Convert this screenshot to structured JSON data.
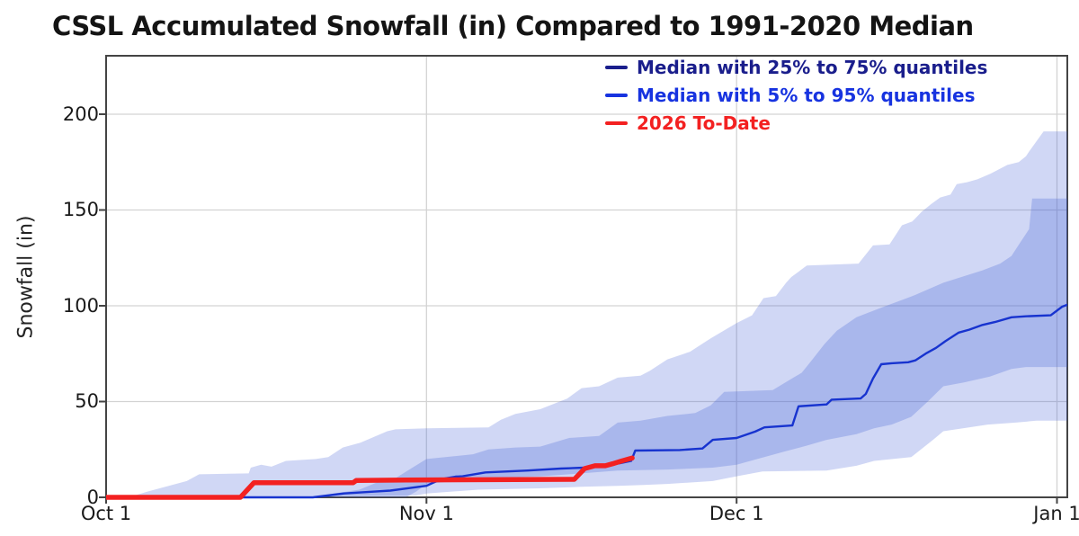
{
  "title": "CSSL Accumulated Snowfall (in) Compared to 1991-2020 Median",
  "y_axis_title": "Snowfall (in)",
  "legend": {
    "entries": [
      {
        "label": "Median with 25% to 75% quantiles",
        "color": "#1a1e8c"
      },
      {
        "label": "Median with 5% to 95% quantiles",
        "color": "#1733e0"
      },
      {
        "label": "2026 To-Date",
        "color": "#f32121"
      }
    ]
  },
  "colors": {
    "grid": "#d3d3d3",
    "axis_border": "#444444",
    "band_fill": "rgba(68,96,215,0.25)",
    "inner_band_fill": "rgba(68,96,215,0.27)",
    "median_line": "#1733cf",
    "to_date_line": "#f32121",
    "tick_text": "#1a1a1a",
    "title_text": "#141414"
  },
  "chart_data": {
    "type": "line",
    "subtype": "median-with-quantile-bands",
    "x_unit": "days since Oct 1",
    "xlim": [
      0,
      93
    ],
    "ylim": [
      0,
      230.5
    ],
    "grid": true,
    "legend_position": "top-right-inside",
    "xlabel": "",
    "ylabel": "Snowfall (in)",
    "xticks": {
      "days": [
        0,
        31,
        61,
        92
      ],
      "labels": [
        "Oct 1",
        "Nov 1",
        "Dec 1",
        "Jan 1"
      ]
    },
    "yticks": [
      0,
      50,
      100,
      150,
      200
    ],
    "series": [
      {
        "name": "5% to 95% quantile band",
        "type": "band",
        "upper": [
          [
            0,
            0
          ],
          [
            2.8,
            1
          ],
          [
            4,
            3
          ],
          [
            7.8,
            8.5
          ],
          [
            9,
            12
          ],
          [
            13.8,
            12.5
          ],
          [
            14,
            15.5
          ],
          [
            15,
            17
          ],
          [
            16,
            16
          ],
          [
            17.4,
            19
          ],
          [
            20.3,
            20
          ],
          [
            21.5,
            21
          ],
          [
            22.9,
            26
          ],
          [
            24.6,
            28.5
          ],
          [
            27.2,
            34.5
          ],
          [
            28,
            35.5
          ],
          [
            31,
            36
          ],
          [
            37,
            36.5
          ],
          [
            38.2,
            40.5
          ],
          [
            39.6,
            43.5
          ],
          [
            42,
            46
          ],
          [
            44.6,
            51.5
          ],
          [
            46,
            57
          ],
          [
            47.7,
            58
          ],
          [
            49.5,
            62.5
          ],
          [
            51.7,
            63.5
          ],
          [
            52.6,
            66
          ],
          [
            54.3,
            72
          ],
          [
            56.5,
            76
          ],
          [
            58.5,
            83
          ],
          [
            61,
            91
          ],
          [
            62.5,
            95
          ],
          [
            63.6,
            104
          ],
          [
            64.8,
            105
          ],
          [
            65.8,
            112
          ],
          [
            66.3,
            115
          ],
          [
            67.8,
            121
          ],
          [
            72.8,
            122
          ],
          [
            74.2,
            131.5
          ],
          [
            75.8,
            132
          ],
          [
            77,
            142
          ],
          [
            78,
            144
          ],
          [
            78.9,
            149
          ],
          [
            79.8,
            153
          ],
          [
            80.7,
            156.5
          ],
          [
            81.7,
            158
          ],
          [
            82.3,
            163.5
          ],
          [
            83.3,
            164.5
          ],
          [
            84.3,
            166
          ],
          [
            85.6,
            169
          ],
          [
            87.2,
            173.5
          ],
          [
            88.3,
            175
          ],
          [
            89,
            178
          ],
          [
            89.3,
            180.5
          ],
          [
            90.7,
            191
          ],
          [
            93,
            191
          ]
        ],
        "lower": [
          [
            0,
            0
          ],
          [
            30,
            1
          ],
          [
            31,
            2
          ],
          [
            36,
            4
          ],
          [
            41.9,
            4.7
          ],
          [
            46,
            5.5
          ],
          [
            49.5,
            6
          ],
          [
            52,
            6.5
          ],
          [
            54.3,
            7
          ],
          [
            58.7,
            8.5
          ],
          [
            61,
            11
          ],
          [
            63.5,
            13.5
          ],
          [
            69.7,
            14
          ],
          [
            72.6,
            16.5
          ],
          [
            74.3,
            19
          ],
          [
            77.9,
            21
          ],
          [
            80,
            30
          ],
          [
            81,
            34.5
          ],
          [
            85.3,
            38
          ],
          [
            88,
            39
          ],
          [
            90,
            40
          ],
          [
            93,
            40
          ]
        ]
      },
      {
        "name": "25% to 75% quantile band",
        "type": "band",
        "upper": [
          [
            0,
            0
          ],
          [
            20,
            0
          ],
          [
            22,
            2
          ],
          [
            24.5,
            4
          ],
          [
            26.3,
            8
          ],
          [
            28,
            10
          ],
          [
            29.5,
            15
          ],
          [
            31,
            20
          ],
          [
            35.5,
            22.5
          ],
          [
            37,
            25
          ],
          [
            39.6,
            26
          ],
          [
            42,
            26.5
          ],
          [
            44.8,
            31
          ],
          [
            47.7,
            32
          ],
          [
            49.5,
            39
          ],
          [
            51.7,
            40
          ],
          [
            54.3,
            42.5
          ],
          [
            57,
            44
          ],
          [
            58.5,
            48
          ],
          [
            59.8,
            55
          ],
          [
            64.5,
            56
          ],
          [
            66.5,
            62.5
          ],
          [
            67.3,
            65
          ],
          [
            68.2,
            71
          ],
          [
            69.5,
            80
          ],
          [
            70.7,
            87
          ],
          [
            72.6,
            94
          ],
          [
            75,
            99
          ],
          [
            78,
            105
          ],
          [
            81,
            112
          ],
          [
            84.8,
            118.5
          ],
          [
            86.5,
            122
          ],
          [
            87.6,
            126
          ],
          [
            88.2,
            131
          ],
          [
            89.3,
            140
          ],
          [
            89.6,
            156
          ],
          [
            93,
            156
          ]
        ],
        "lower": [
          [
            0,
            0
          ],
          [
            29,
            0
          ],
          [
            30,
            3
          ],
          [
            31,
            7
          ],
          [
            35.5,
            9.5
          ],
          [
            39.6,
            10.5
          ],
          [
            42,
            11
          ],
          [
            44.8,
            12
          ],
          [
            49.5,
            14
          ],
          [
            54.3,
            14.5
          ],
          [
            58.7,
            15.5
          ],
          [
            61,
            17
          ],
          [
            63,
            20
          ],
          [
            65.7,
            24
          ],
          [
            67.8,
            27
          ],
          [
            69.7,
            30
          ],
          [
            72.6,
            33
          ],
          [
            74.3,
            36
          ],
          [
            76,
            38
          ],
          [
            77.9,
            42
          ],
          [
            79.5,
            50
          ],
          [
            81,
            58
          ],
          [
            83,
            60
          ],
          [
            85.5,
            63
          ],
          [
            87.6,
            67
          ],
          [
            89,
            68
          ],
          [
            93,
            68
          ]
        ]
      },
      {
        "name": "Median",
        "type": "line",
        "points": [
          [
            0,
            0
          ],
          [
            20,
            0
          ],
          [
            23,
            2
          ],
          [
            26,
            3
          ],
          [
            27.5,
            3.5
          ],
          [
            29.6,
            5
          ],
          [
            31,
            6
          ],
          [
            32.4,
            9.5
          ],
          [
            33.8,
            10.8
          ],
          [
            34.5,
            11
          ],
          [
            36.7,
            13
          ],
          [
            40.8,
            14
          ],
          [
            44,
            15
          ],
          [
            46.3,
            15.5
          ],
          [
            48,
            16.5
          ],
          [
            49.7,
            17.8
          ],
          [
            50.8,
            19
          ],
          [
            51.2,
            24.4
          ],
          [
            55.5,
            24.7
          ],
          [
            57.7,
            25.5
          ],
          [
            58.7,
            30
          ],
          [
            61,
            31
          ],
          [
            62.8,
            34.3
          ],
          [
            63.7,
            36.5
          ],
          [
            66.4,
            37.5
          ],
          [
            67,
            47.5
          ],
          [
            69.7,
            48.5
          ],
          [
            70.2,
            51
          ],
          [
            73,
            51.6
          ],
          [
            73.5,
            54
          ],
          [
            74.2,
            62
          ],
          [
            75,
            69.5
          ],
          [
            76,
            70
          ],
          [
            77.6,
            70.5
          ],
          [
            78.3,
            71.5
          ],
          [
            79.3,
            75
          ],
          [
            80.3,
            78
          ],
          [
            81.2,
            81.5
          ],
          [
            82.5,
            86
          ],
          [
            83.5,
            87.5
          ],
          [
            84.8,
            90
          ],
          [
            86,
            91.5
          ],
          [
            87.6,
            94
          ],
          [
            89,
            94.5
          ],
          [
            91.4,
            95
          ],
          [
            92.5,
            99.5
          ],
          [
            93,
            100.5
          ]
        ]
      },
      {
        "name": "2026 To-Date",
        "type": "line",
        "points": [
          [
            0,
            0
          ],
          [
            13,
            0
          ],
          [
            14.3,
            7.6
          ],
          [
            23.9,
            7.6
          ],
          [
            24.2,
            8.8
          ],
          [
            29,
            9
          ],
          [
            45.3,
            9.4
          ],
          [
            46.3,
            15
          ],
          [
            47.3,
            16.5
          ],
          [
            48.3,
            16.5
          ],
          [
            49,
            17.5
          ],
          [
            49.9,
            19
          ],
          [
            50.9,
            20.5
          ]
        ]
      }
    ]
  }
}
